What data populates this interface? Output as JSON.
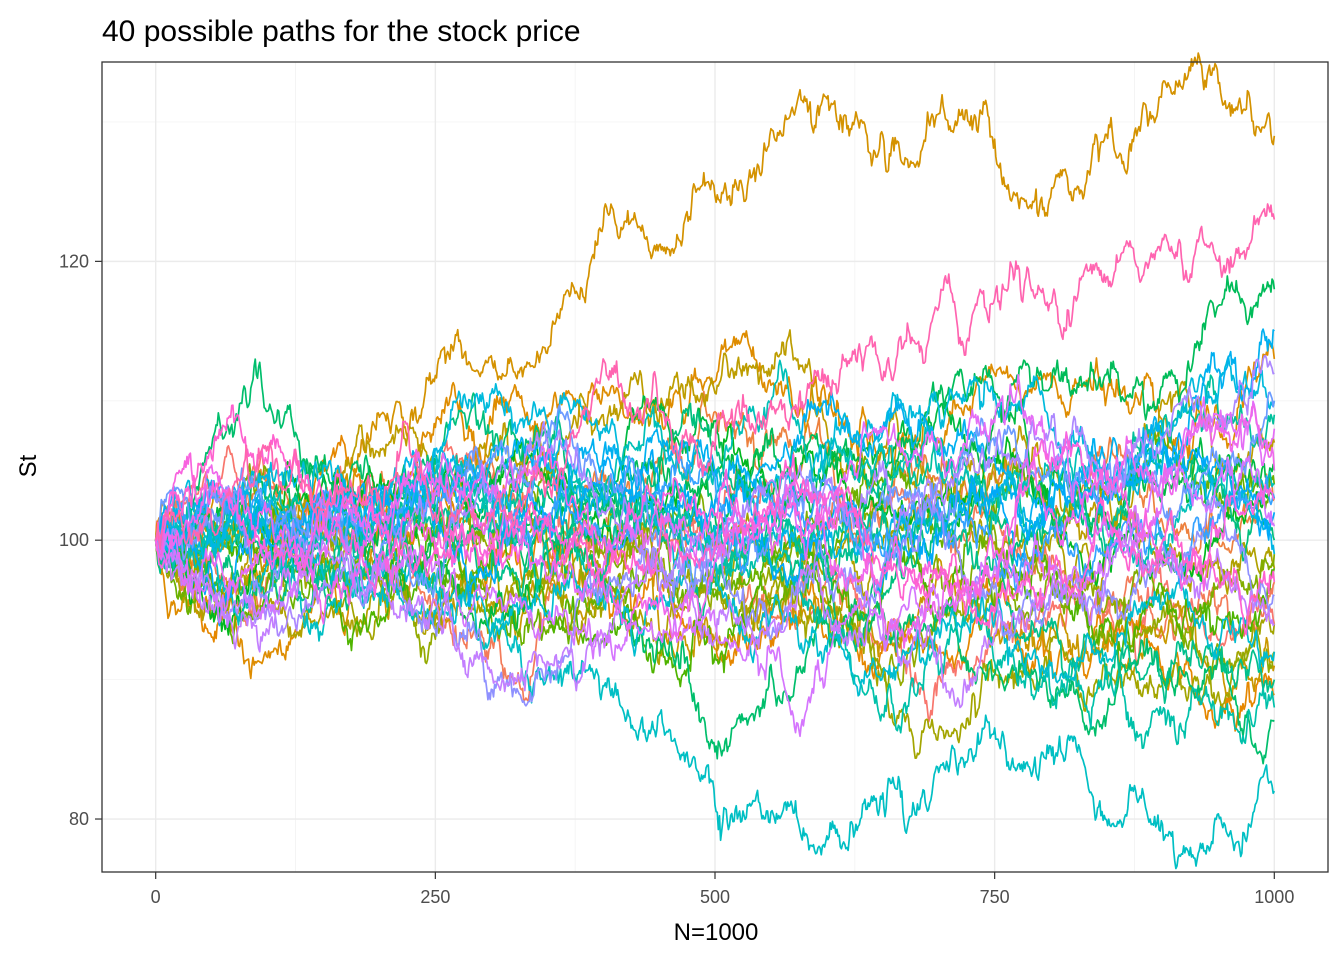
{
  "chart_data": {
    "type": "line",
    "title": "40 possible paths for the stock price",
    "xlabel": "N=1000",
    "ylabel": "St",
    "xlim": [
      -48,
      1048
    ],
    "ylim": [
      76.2,
      134.3
    ],
    "x_ticks": [
      0,
      250,
      500,
      750,
      1000
    ],
    "x_tick_labels": [
      "0",
      "250",
      "500",
      "750",
      "1000"
    ],
    "y_ticks": [
      80,
      100,
      120
    ],
    "y_tick_labels": [
      "80",
      "100",
      "120"
    ],
    "grid": true,
    "legend": "none",
    "n_steps": 1000,
    "start_value": 100,
    "series": [
      {
        "color": "#F8766D",
        "values": [
          100,
          103,
          101,
          97,
          95,
          94
        ]
      },
      {
        "color": "#F37B59",
        "values": [
          100,
          101,
          99,
          101,
          98,
          97
        ]
      },
      {
        "color": "#ED813E",
        "values": [
          100,
          104,
          105,
          106,
          103,
          103
        ]
      },
      {
        "color": "#E58700",
        "values": [
          100,
          102,
          97,
          93,
          92,
          89
        ]
      },
      {
        "color": "#DE8C00",
        "values": [
          100,
          101,
          111,
          110,
          112,
          113
        ]
      },
      {
        "color": "#D49200",
        "values": [
          100,
          101,
          106,
          114,
          117,
          121,
          128,
          129,
          130,
          125,
          132,
          129
        ]
      },
      {
        "color": "#C99800",
        "values": [
          100,
          99,
          96,
          93,
          93,
          92,
          91
        ]
      },
      {
        "color": "#BD9D00",
        "values": [
          100,
          106,
          109,
          108,
          105,
          107
        ]
      },
      {
        "color": "#B0A100",
        "values": [
          100,
          98,
          97,
          97,
          100,
          98
        ]
      },
      {
        "color": "#A3A500",
        "values": [
          100,
          96,
          95,
          95,
          93,
          94
        ]
      },
      {
        "color": "#93AA00",
        "values": [
          100,
          97,
          99,
          96,
          97,
          92
        ]
      },
      {
        "color": "#81AD00",
        "values": [
          100,
          102,
          100,
          101,
          97,
          99
        ]
      },
      {
        "color": "#6BB100",
        "values": [
          100,
          97,
          96,
          99,
          102,
          104
        ]
      },
      {
        "color": "#4FB400",
        "values": [
          100,
          94,
          93,
          95,
          97,
          98
        ]
      },
      {
        "color": "#00B81F",
        "values": [
          100,
          104,
          101,
          105,
          102,
          103
        ]
      },
      {
        "color": "#00BA42",
        "values": [
          100,
          101,
          103,
          105,
          104,
          105
        ]
      },
      {
        "color": "#00BC59",
        "values": [
          100,
          99,
          102,
          106,
          111,
          118
        ]
      },
      {
        "color": "#00BE6C",
        "values": [
          100,
          101,
          97,
          94,
          88,
          87
        ]
      },
      {
        "color": "#00BF7D",
        "values": [
          100,
          99,
          102,
          99,
          101,
          100
        ]
      },
      {
        "color": "#00C08D",
        "values": [
          100,
          102,
          101,
          98,
          94,
          90
        ]
      },
      {
        "color": "#00C19C",
        "values": [
          100,
          99,
          103,
          100,
          102,
          109
        ]
      },
      {
        "color": "#00C1AA",
        "values": [
          100,
          98,
          98,
          95,
          89,
          88
        ]
      },
      {
        "color": "#00C0B8",
        "values": [
          100,
          102,
          104,
          106,
          104,
          104
        ]
      },
      {
        "color": "#00BFC4",
        "values": [
          100,
          98,
          95,
          90,
          87,
          80,
          82,
          84,
          80,
          82
        ]
      },
      {
        "color": "#00BDD0",
        "values": [
          100,
          99,
          96,
          92,
          91,
          92
        ]
      },
      {
        "color": "#00BADC",
        "values": [
          100,
          104,
          108,
          107,
          108,
          110
        ]
      },
      {
        "color": "#00B6E6",
        "values": [
          100,
          103,
          103,
          100,
          102,
          99
        ]
      },
      {
        "color": "#00B0F0",
        "values": [
          100,
          102,
          106,
          109,
          103,
          115
        ]
      },
      {
        "color": "#00A9F8",
        "values": [
          100,
          103,
          105,
          101,
          104,
          102
        ]
      },
      {
        "color": "#35A2FF",
        "values": [
          100,
          102,
          100,
          104,
          101,
          103
        ]
      },
      {
        "color": "#6B9BFF",
        "values": [
          100,
          98,
          104,
          102,
          105,
          110
        ]
      },
      {
        "color": "#8F91FF",
        "values": [
          100,
          99,
          97,
          97,
          96,
          96
        ]
      },
      {
        "color": "#AC88FF",
        "values": [
          100,
          99,
          102,
          104,
          108,
          112
        ]
      },
      {
        "color": "#C37FFF",
        "values": [
          100,
          98,
          93,
          95,
          96,
          94
        ]
      },
      {
        "color": "#D575FE",
        "values": [
          100,
          98,
          93,
          91,
          98,
          101
        ]
      },
      {
        "color": "#E46DF6",
        "values": [
          100,
          101,
          98,
          102,
          107,
          108
        ]
      },
      {
        "color": "#EF67EB",
        "values": [
          100,
          102,
          97,
          99,
          102,
          105
        ]
      },
      {
        "color": "#F863DF",
        "values": [
          100,
          99,
          100,
          103,
          105,
          103
        ]
      },
      {
        "color": "#FE61CF",
        "values": [
          100,
          101,
          97,
          102,
          98,
          97
        ]
      },
      {
        "color": "#FF64B0",
        "values": [
          100,
          103,
          113,
          111,
          117,
          123
        ]
      }
    ]
  }
}
